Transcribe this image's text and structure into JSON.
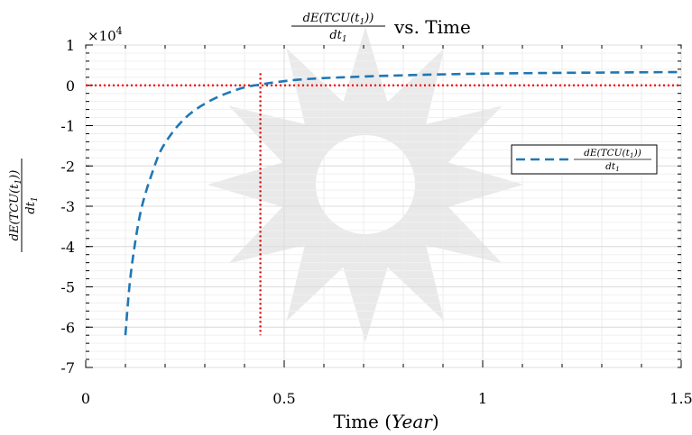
{
  "chart_data": {
    "type": "line",
    "title": {
      "numerator": "dE(TCU(t",
      "numerator_sub": "1",
      "numerator_close": "))",
      "denominator": "dt",
      "denominator_sub": "1",
      "suffix": "vs. Time"
    },
    "xlabel": {
      "prefix": "Time (",
      "var": "Year",
      "suffix": ")"
    },
    "ylabel": {
      "numerator": "dE(TCU(t",
      "numerator_sub": "1",
      "numerator_close": "))",
      "denominator": "dt",
      "denominator_sub": "1"
    },
    "xlim": [
      0,
      1.5
    ],
    "ylim": [
      -7,
      1
    ],
    "y_exponent": {
      "base": "×10",
      "power": "4"
    },
    "xticks": [
      0,
      0.5,
      1,
      1.5
    ],
    "xtick_labels": [
      "0",
      "0.5",
      "1",
      "1.5"
    ],
    "yticks": [
      1,
      0,
      -1,
      -2,
      -3,
      -4,
      -5,
      -6,
      -7
    ],
    "ytick_labels": [
      "1",
      "0",
      "-1",
      "-2",
      "-3",
      "-4",
      "-5",
      "-6",
      "-7"
    ],
    "grid": true,
    "series": [
      {
        "name": {
          "numerator": "dE(TCU(t",
          "numerator_sub": "1",
          "numerator_close": "))",
          "denominator": "dt",
          "denominator_sub": "1"
        },
        "style": "dashed",
        "color": "#1f77b4",
        "x": [
          0.1,
          0.11,
          0.12,
          0.135,
          0.15,
          0.17,
          0.19,
          0.22,
          0.25,
          0.28,
          0.32,
          0.36,
          0.4,
          0.44,
          0.48,
          0.55,
          0.65,
          0.8,
          1.0,
          1.2,
          1.5
        ],
        "y": [
          -6.2,
          -5.0,
          -4.2,
          -3.3,
          -2.7,
          -2.1,
          -1.6,
          -1.15,
          -0.82,
          -0.58,
          -0.35,
          -0.18,
          -0.05,
          0.02,
          0.08,
          0.15,
          0.2,
          0.25,
          0.29,
          0.31,
          0.33
        ]
      }
    ],
    "reference_lines": [
      {
        "orientation": "horizontal",
        "value": 0,
        "color": "#ff0000",
        "style": "dotted"
      },
      {
        "orientation": "vertical",
        "value": 0.44,
        "from": -6.2,
        "to": 0.3,
        "color": "#d40000",
        "style": "dotted"
      }
    ],
    "legend_position": "right"
  }
}
